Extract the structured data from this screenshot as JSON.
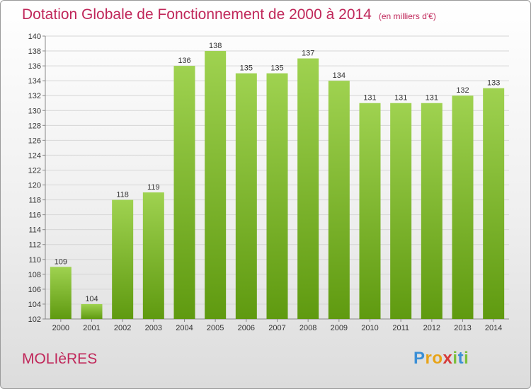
{
  "header": {
    "title": "Dotation Globale de Fonctionnement de 2000 à 2014",
    "subtitle": "(en milliers d'€)"
  },
  "footer": {
    "town": "MOLIèRES",
    "logo": {
      "letters": [
        "P",
        "r",
        "o",
        "x",
        "i",
        "t",
        "i"
      ],
      "colors": [
        "#3a8fd6",
        "#e8a317",
        "#e8a317",
        "#d63a3a",
        "#7bbf3a",
        "#3a8fd6",
        "#7bbf3a"
      ]
    }
  },
  "chart_data": {
    "type": "bar",
    "title": "Dotation Globale de Fonctionnement de 2000 à 2014",
    "subtitle": "(en milliers d'€)",
    "xlabel": "",
    "ylabel": "",
    "categories": [
      "2000",
      "2001",
      "2002",
      "2003",
      "2004",
      "2005",
      "2006",
      "2007",
      "2008",
      "2009",
      "2010",
      "2011",
      "2012",
      "2013",
      "2014"
    ],
    "values": [
      109,
      104,
      118,
      119,
      136,
      138,
      135,
      135,
      137,
      134,
      131,
      131,
      131,
      132,
      133
    ],
    "ylim": [
      102,
      140
    ],
    "ytick_step": 2,
    "grid": true,
    "bar_color_top": "#9fd250",
    "bar_color_bottom": "#5f9a10"
  }
}
